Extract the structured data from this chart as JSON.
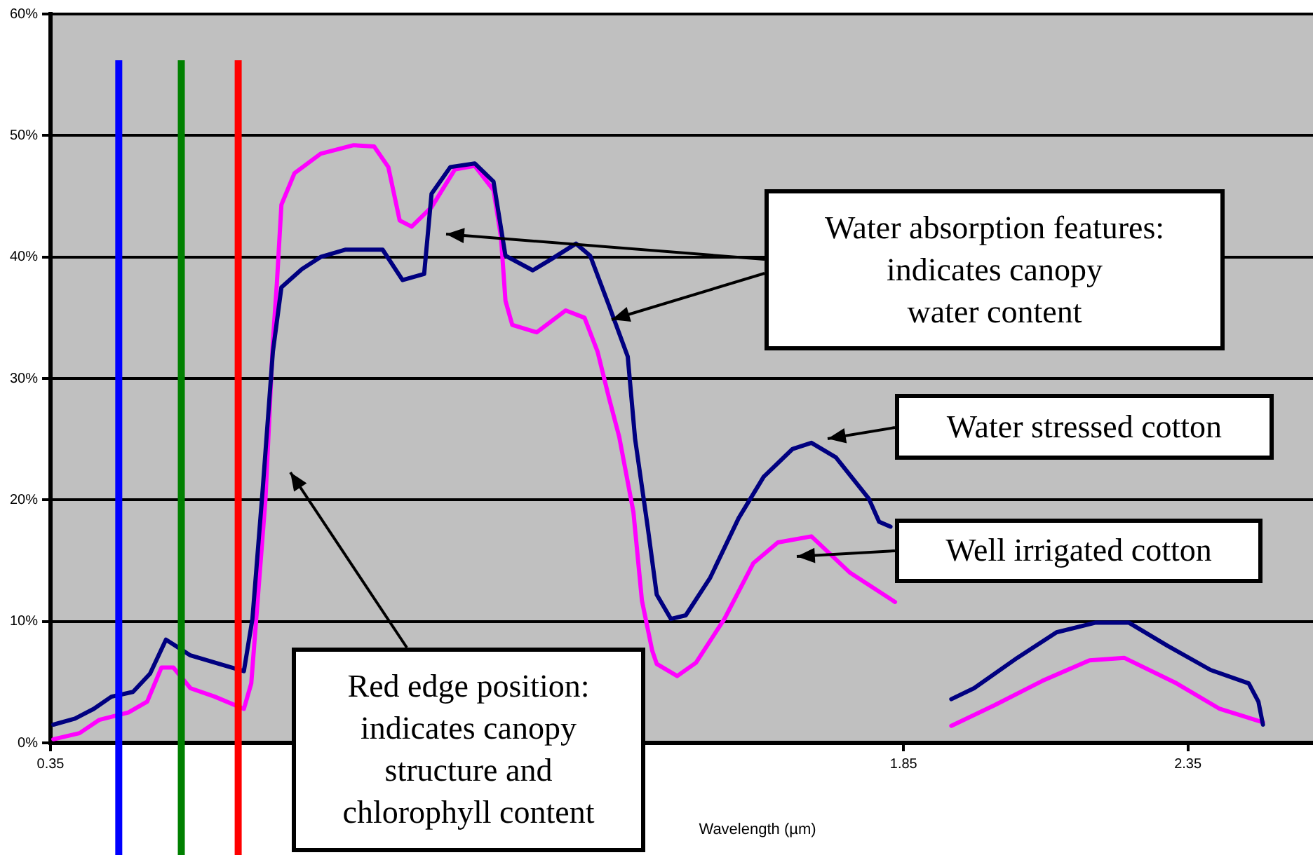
{
  "chart_data": {
    "type": "line",
    "xlabel": "Wavelength (µm)",
    "xlim": [
      0.35,
      2.57
    ],
    "xticks": [
      0.35,
      1.85,
      2.35
    ],
    "ylim": [
      0,
      60
    ],
    "yticks": [
      {
        "value": 0,
        "label": "0%"
      },
      {
        "value": 10,
        "label": "10%"
      },
      {
        "value": 20,
        "label": "20%"
      },
      {
        "value": 30,
        "label": "30%"
      },
      {
        "value": 40,
        "label": "40%"
      },
      {
        "value": 50,
        "label": "50%"
      },
      {
        "value": 60,
        "label": "60%"
      }
    ],
    "grid": "y",
    "legend": false,
    "marker": "none",
    "line_style": "solid",
    "series": [
      {
        "color": "#000080",
        "x": [
          0.355,
          0.393,
          0.426,
          0.457,
          0.495,
          0.525,
          0.553,
          0.596,
          0.647,
          0.69,
          0.705,
          0.723,
          0.741,
          0.756,
          0.792,
          0.825,
          0.868,
          0.934,
          0.969,
          1.007,
          1.02,
          1.053,
          1.096,
          1.129,
          1.15,
          1.198,
          1.23,
          1.274,
          1.299,
          1.332,
          1.365,
          1.378,
          1.4,
          1.416,
          1.441,
          1.467,
          1.51,
          1.56,
          1.604,
          1.655,
          1.688,
          1.731,
          1.789,
          1.807,
          1.827,
          1.88,
          1.934,
          1.974,
          2.05,
          2.119,
          2.188,
          2.246,
          2.314,
          2.39,
          2.457,
          2.474,
          2.482
        ],
        "values": [
          1.5,
          2.0,
          2.8,
          3.8,
          4.2,
          5.7,
          8.5,
          7.2,
          6.5,
          5.9,
          10.2,
          20.8,
          32.2,
          37.5,
          39,
          40,
          40.6,
          40.6,
          38.1,
          38.6,
          45.2,
          47.4,
          47.7,
          46.2,
          40.1,
          38.9,
          39.8,
          41.1,
          40.1,
          36,
          31.8,
          25,
          17.8,
          12.2,
          10.2,
          10.5,
          13.6,
          18.5,
          21.9,
          24.2,
          24.7,
          23.5,
          20.1,
          18.2,
          17.8,
          null,
          3.6,
          4.5,
          7.0,
          9.1,
          9.9,
          9.9,
          8.0,
          6.0,
          4.9,
          3.4,
          1.5
        ]
      },
      {
        "color": "#ff00ff",
        "x": [
          0.355,
          0.401,
          0.436,
          0.487,
          0.52,
          0.545,
          0.566,
          0.596,
          0.639,
          0.69,
          0.703,
          0.715,
          0.728,
          0.741,
          0.748,
          0.756,
          0.779,
          0.825,
          0.883,
          0.919,
          0.944,
          0.964,
          0.985,
          1.02,
          1.061,
          1.096,
          1.129,
          1.142,
          1.15,
          1.162,
          1.205,
          1.256,
          1.289,
          1.312,
          1.332,
          1.35,
          1.375,
          1.39,
          1.408,
          1.416,
          1.452,
          1.485,
          1.535,
          1.586,
          1.629,
          1.688,
          1.756,
          1.835,
          1.88,
          1.934,
          2.01,
          2.094,
          2.177,
          2.238,
          2.33,
          2.406,
          2.482
        ],
        "values": [
          0.3,
          0.8,
          1.9,
          2.5,
          3.4,
          6.2,
          6.2,
          4.5,
          3.8,
          2.8,
          4.9,
          12.2,
          20.1,
          33,
          37.8,
          44.3,
          46.9,
          48.5,
          49.2,
          49.1,
          47.4,
          43,
          42.5,
          44.1,
          47.2,
          47.5,
          45.5,
          41.7,
          36.4,
          34.4,
          33.8,
          35.6,
          35,
          32.2,
          28.4,
          25.2,
          19,
          11.7,
          7.6,
          6.5,
          5.5,
          6.6,
          10.2,
          14.8,
          16.5,
          17.0,
          14.0,
          11.6,
          null,
          1.4,
          3.1,
          5.1,
          6.8,
          7.0,
          4.9,
          2.8,
          1.7
        ]
      }
    ],
    "ref_lines": [
      {
        "axis": "x",
        "value": 0.47,
        "color": "#0000ff"
      },
      {
        "axis": "x",
        "value": 0.58,
        "color": "#008000"
      },
      {
        "axis": "x",
        "value": 0.68,
        "color": "#ff0000"
      }
    ],
    "annotations": [
      "Water absorption features:\nindicates canopy\nwater content",
      "Water stressed cotton",
      "Well irrigated cotton",
      "Red edge position:\nindicates canopy\nstructure and\nchlorophyll content"
    ]
  }
}
